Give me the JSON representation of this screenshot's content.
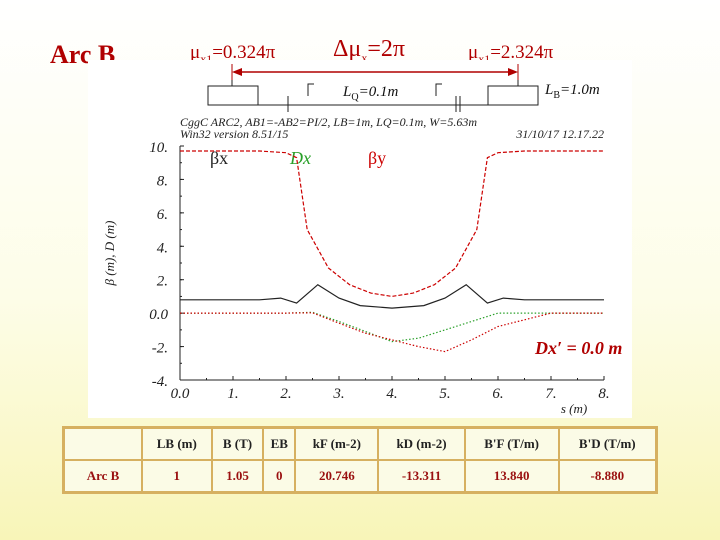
{
  "title": "Arc B",
  "headers": {
    "mu_left": {
      "symbol": "μ",
      "sub": "x1",
      "value": "=0.324π"
    },
    "dmu": {
      "symbol": "Δμ",
      "sub": "x",
      "value": "=2π"
    },
    "mu_right": {
      "symbol": "μ",
      "sub": "x1",
      "value": "=2.324π"
    }
  },
  "labels": {
    "lq": {
      "main": "L",
      "sub": "Q",
      "value": "=0.1m"
    },
    "lb": {
      "main": "L",
      "sub": "B",
      "value": "=1.0m"
    },
    "dxprime": "Dx′ = 0.0 m"
  },
  "plot_header": {
    "line1": "CggC ARC2, AB1=-AB2=PI/2, LB=1m, LQ=0.1m, W=5.63m",
    "line2_left": "Win32 version 8.51/15",
    "line2_right": "31/10/17  12.17.22"
  },
  "chart_data": {
    "type": "line",
    "ylabel": "β (m), D (m)",
    "xlabel": "s (m)",
    "xlim": [
      0,
      8
    ],
    "ylim": [
      -4,
      10
    ],
    "x_ticks": [
      "0.0",
      "1.",
      "2.",
      "3.",
      "4.",
      "5.",
      "6.",
      "7.",
      "8."
    ],
    "y_ticks": [
      "-4.",
      "-2.",
      "0.0",
      "2.",
      "4.",
      "6.",
      "8.",
      "10."
    ],
    "legend": [
      "βx",
      "Dx",
      "βy"
    ],
    "series": [
      {
        "name": "βx",
        "color": "#222222",
        "dash": "solid",
        "x": [
          0,
          0.5,
          1.0,
          1.5,
          1.9,
          2.2,
          2.6,
          3.0,
          3.4,
          4.0,
          4.6,
          5.0,
          5.4,
          5.8,
          6.1,
          6.5,
          7.0,
          7.5,
          8.0
        ],
        "y": [
          0.8,
          0.8,
          0.8,
          0.8,
          0.9,
          0.6,
          1.7,
          0.9,
          0.45,
          0.3,
          0.45,
          0.9,
          1.7,
          0.6,
          0.9,
          0.8,
          0.8,
          0.8,
          0.8
        ]
      },
      {
        "name": "βy",
        "color": "#cc0000",
        "dash": "dash",
        "x": [
          0,
          1.5,
          2.0,
          2.2,
          2.4,
          2.8,
          3.2,
          3.6,
          4.0,
          4.4,
          4.8,
          5.2,
          5.6,
          5.8,
          6.0,
          6.5,
          8.0
        ],
        "y": [
          9.7,
          9.7,
          9.6,
          9.3,
          5.0,
          2.7,
          1.7,
          1.2,
          1.0,
          1.2,
          1.7,
          2.7,
          5.0,
          9.3,
          9.6,
          9.7,
          9.7
        ]
      },
      {
        "name": "Dx",
        "color": "#2aa02a",
        "dash": "dot",
        "x": [
          0,
          1.0,
          2.0,
          2.5,
          3.0,
          3.5,
          4.0,
          4.5,
          5.0,
          5.5,
          6.0,
          7.0,
          8.0
        ],
        "y": [
          0,
          0,
          0,
          0.05,
          -0.5,
          -1.1,
          -1.7,
          -1.5,
          -1.0,
          -0.5,
          0,
          0,
          0
        ]
      },
      {
        "name": "Dx",
        "color": "#cc0000",
        "dash": "dot",
        "x": [
          0,
          1.0,
          2.0,
          2.5,
          3.0,
          3.5,
          4.0,
          4.5,
          5.0,
          5.5,
          6.0,
          7.0,
          8.0
        ],
        "y": [
          0,
          0,
          0,
          0.02,
          -0.6,
          -1.2,
          -1.6,
          -2.0,
          -2.3,
          -1.6,
          -0.8,
          0,
          0
        ]
      }
    ]
  },
  "table": {
    "headers": [
      "",
      "LB (m)",
      "B (T)",
      "EB",
      "kF (m-2)",
      "kD (m-2)",
      "B'F (T/m)",
      "B'D (T/m)"
    ],
    "row": [
      "Arc B",
      "1",
      "1.05",
      "0",
      "20.746",
      "-13.311",
      "13.840",
      "-8.880"
    ]
  }
}
